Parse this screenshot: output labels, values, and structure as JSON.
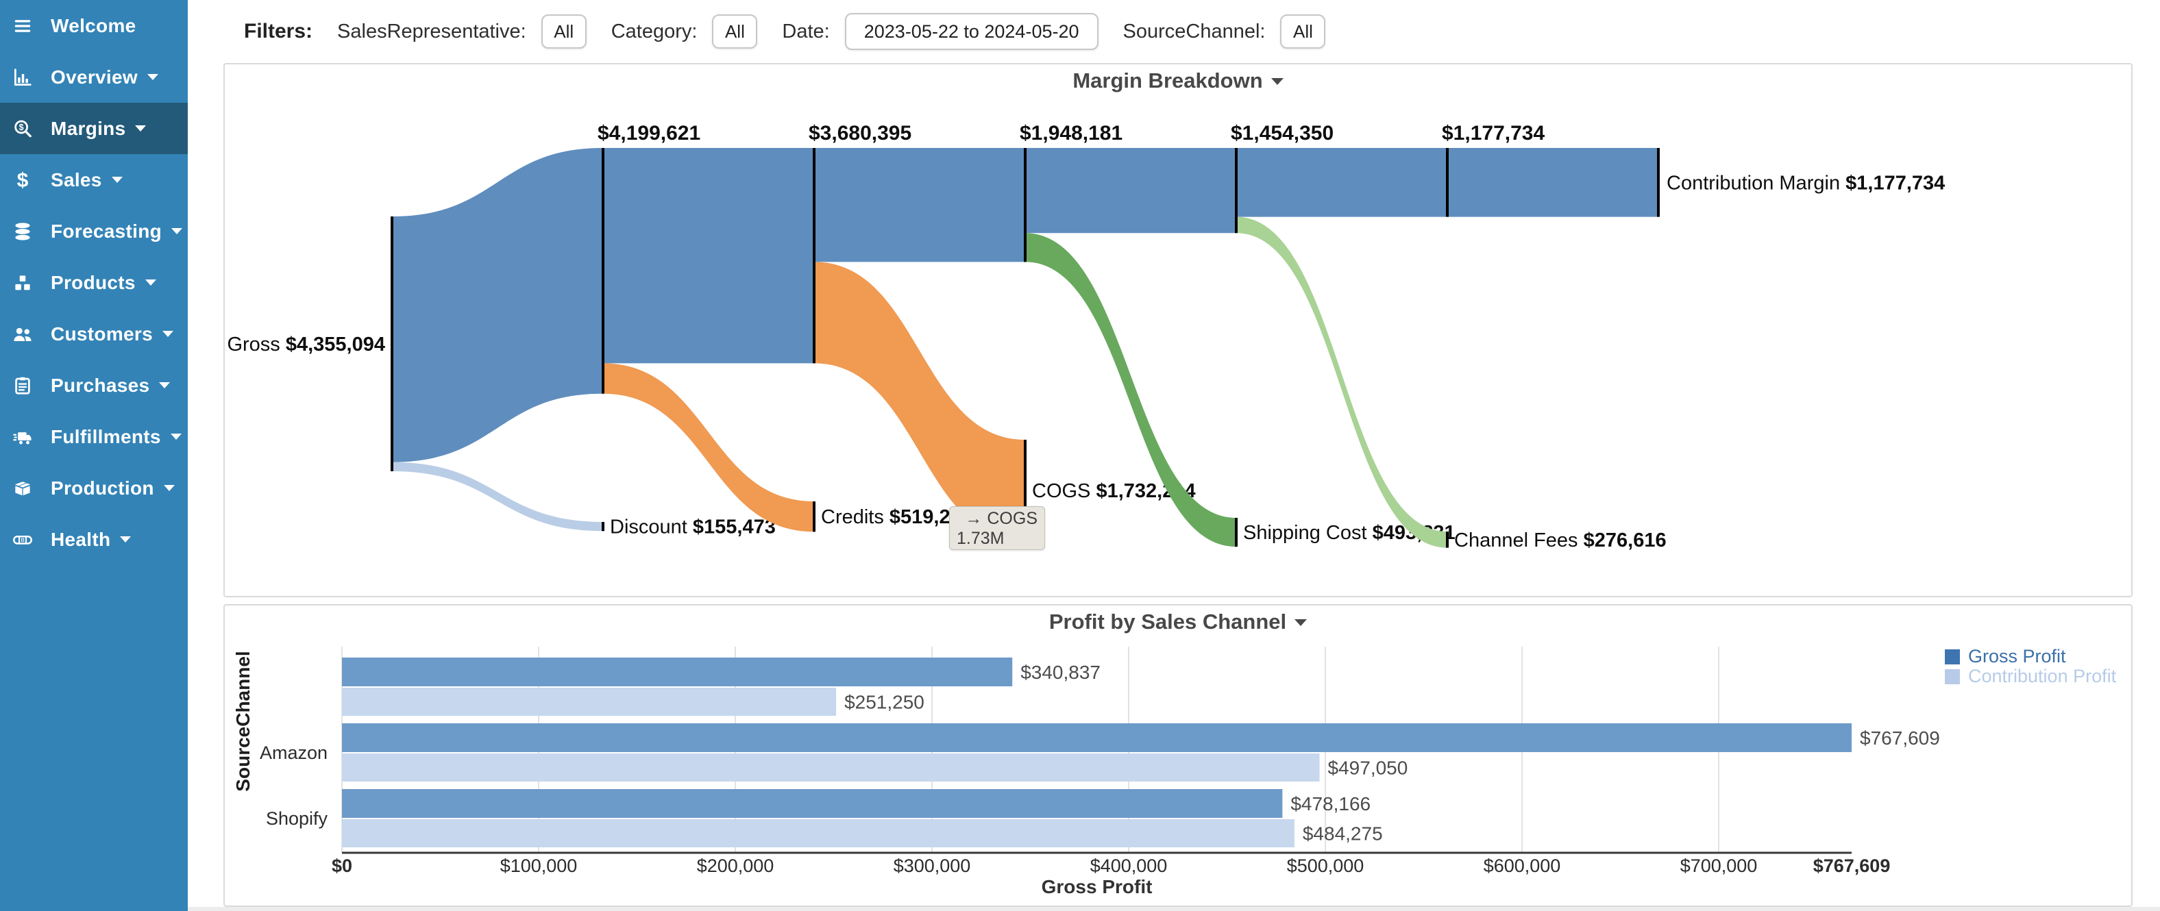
{
  "sidebar": {
    "bg_color": "#3383b6",
    "active_color": "#235a79",
    "items": [
      {
        "label": "Welcome",
        "icon": "menu-icon",
        "active": false,
        "caret": false
      },
      {
        "label": "Overview",
        "icon": "overview-icon",
        "active": false,
        "caret": true
      },
      {
        "label": "Margins",
        "icon": "margins-icon",
        "active": true,
        "caret": true
      },
      {
        "label": "Sales",
        "icon": "sales-icon",
        "active": false,
        "caret": true
      },
      {
        "label": "Forecasting",
        "icon": "forecasting-icon",
        "active": false,
        "caret": true
      },
      {
        "label": "Products",
        "icon": "products-icon",
        "active": false,
        "caret": true
      },
      {
        "label": "Customers",
        "icon": "customers-icon",
        "active": false,
        "caret": true
      },
      {
        "label": "Purchases",
        "icon": "purchases-icon",
        "active": false,
        "caret": true
      },
      {
        "label": "Fulfillments",
        "icon": "fulfillments-icon",
        "active": false,
        "caret": true
      },
      {
        "label": "Production",
        "icon": "production-icon",
        "active": false,
        "caret": true
      },
      {
        "label": "Health",
        "icon": "health-icon",
        "active": false,
        "caret": true
      }
    ]
  },
  "filters": {
    "label": "Filters:",
    "fields": [
      {
        "name": "SalesRepresentative",
        "label": "SalesRepresentative:",
        "value": "All",
        "kind": "button"
      },
      {
        "name": "Category",
        "label": "Category:",
        "value": "All",
        "kind": "button"
      },
      {
        "name": "Date",
        "label": "Date:",
        "value": "2023-05-22 to 2024-05-20",
        "kind": "input"
      },
      {
        "name": "SourceChannel",
        "label": "SourceChannel:",
        "value": "All",
        "kind": "button"
      }
    ]
  },
  "chart_data": [
    {
      "type": "sankey",
      "title": "Margin Breakdown",
      "flow_color": "#5f8dbe",
      "node_color": "#000000",
      "source": {
        "label": "Gross",
        "value": 4355094,
        "display": "$4,355,094"
      },
      "steps": [
        {
          "deduction": "Discount",
          "deduction_value": 155473,
          "deduction_display": "$155,473",
          "remaining": 4199621,
          "remaining_display": "$4,199,621",
          "color": "#b9cde6"
        },
        {
          "deduction": "Credits",
          "deduction_value": 519226,
          "deduction_display": "$519,226",
          "remaining": 3680395,
          "remaining_display": "$3,680,395",
          "color": "#f09a52"
        },
        {
          "deduction": "COGS",
          "deduction_value": 1732214,
          "deduction_display": "$1,732,214",
          "remaining": 1948181,
          "remaining_display": "$1,948,181",
          "color": "#f09a52"
        },
        {
          "deduction": "Shipping Cost",
          "deduction_value": 493831,
          "deduction_display": "$493,831",
          "remaining": 1454350,
          "remaining_display": "$1,454,350",
          "color": "#68a95e"
        },
        {
          "deduction": "Channel Fees",
          "deduction_value": 276616,
          "deduction_display": "$276,616",
          "remaining": 1177734,
          "remaining_display": "$1,177,734",
          "color": "#a9d295"
        }
      ],
      "final": {
        "label": "Contribution Margin",
        "value": 1177734,
        "display": "$1,177,734"
      },
      "tooltip": {
        "line1": "→ COGS",
        "line2": "1.73M"
      }
    },
    {
      "type": "bar",
      "orientation": "horizontal",
      "title": "Profit by Sales Channel",
      "categories": [
        "",
        "Amazon",
        "Shopify"
      ],
      "series": [
        {
          "name": "Gross Profit",
          "color": "#6c9ac9",
          "legend_color": "#3e75b1",
          "text_color": "#3a70a8",
          "values": [
            340837,
            767609,
            478166
          ],
          "display": [
            "$340,837",
            "$767,609",
            "$478,166"
          ]
        },
        {
          "name": "Contribution Profit",
          "color": "#c6d7ee",
          "legend_color": "#b7cbe8",
          "text_color": "#b7cbe8",
          "values": [
            251250,
            497050,
            484275
          ],
          "display": [
            "$251,250",
            "$497,050",
            "$484,275"
          ]
        }
      ],
      "xlabel": "Gross Profit",
      "ylabel": "SourceChannel",
      "xlim": [
        0,
        767609
      ],
      "grid": true,
      "legend_position": "top-right",
      "x_ticks": [
        {
          "value": 0,
          "label": "$0",
          "bold": true
        },
        {
          "value": 100000,
          "label": "$100,000",
          "bold": false
        },
        {
          "value": 200000,
          "label": "$200,000",
          "bold": false
        },
        {
          "value": 300000,
          "label": "$300,000",
          "bold": false
        },
        {
          "value": 400000,
          "label": "$400,000",
          "bold": false
        },
        {
          "value": 500000,
          "label": "$500,000",
          "bold": false
        },
        {
          "value": 600000,
          "label": "$600,000",
          "bold": false
        },
        {
          "value": 700000,
          "label": "$700,000",
          "bold": false
        },
        {
          "value": 767609,
          "label": "$767,609",
          "bold": true,
          "edge": true
        }
      ]
    }
  ]
}
